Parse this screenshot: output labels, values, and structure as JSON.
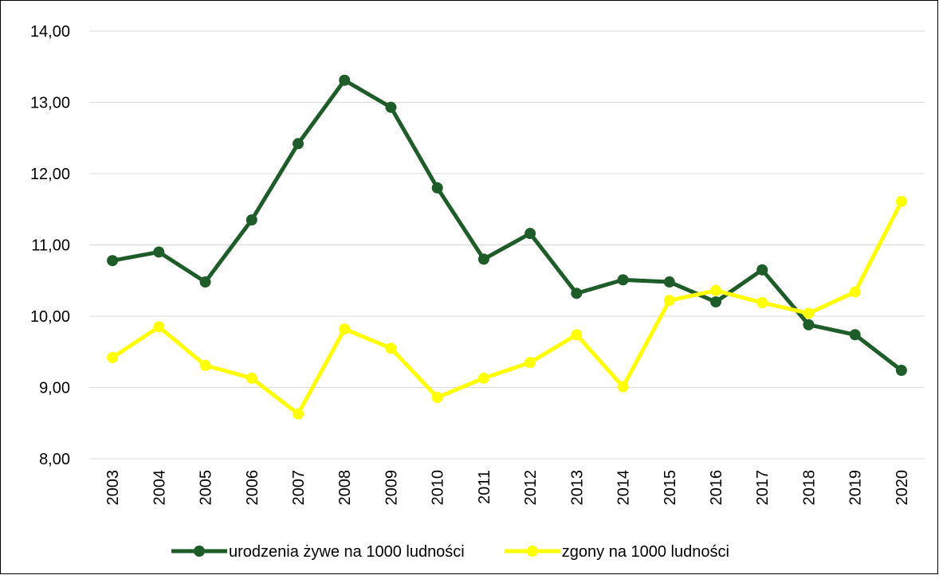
{
  "chart_data": {
    "type": "line",
    "categories": [
      "2003",
      "2004",
      "2005",
      "2006",
      "2007",
      "2008",
      "2009",
      "2010",
      "2011",
      "2012",
      "2013",
      "2014",
      "2015",
      "2016",
      "2017",
      "2018",
      "2019",
      "2020"
    ],
    "series": [
      {
        "name": "urodzenia żywe na 1000 ludności",
        "color": "#1e5c2a",
        "values": [
          10.78,
          10.9,
          10.48,
          11.35,
          12.42,
          13.31,
          12.93,
          11.8,
          10.8,
          11.16,
          10.32,
          10.51,
          10.48,
          10.2,
          10.65,
          9.88,
          9.74,
          9.24
        ]
      },
      {
        "name": "zgony na 1000 ludności",
        "color": "#ffff00",
        "values": [
          9.42,
          9.85,
          9.31,
          9.13,
          8.63,
          9.82,
          9.55,
          8.86,
          9.13,
          9.35,
          9.74,
          9.01,
          10.22,
          10.36,
          10.19,
          10.04,
          10.34,
          11.61
        ]
      }
    ],
    "ylim": [
      8,
      14
    ],
    "yticks": [
      {
        "value": 8,
        "label": "8,00"
      },
      {
        "value": 9,
        "label": "9,00"
      },
      {
        "value": 10,
        "label": "10,00"
      },
      {
        "value": 11,
        "label": "11,00"
      },
      {
        "value": 12,
        "label": "12,00"
      },
      {
        "value": 13,
        "label": "13,00"
      },
      {
        "value": 14,
        "label": "14,00"
      }
    ],
    "grid": true,
    "legend": "bottom"
  }
}
